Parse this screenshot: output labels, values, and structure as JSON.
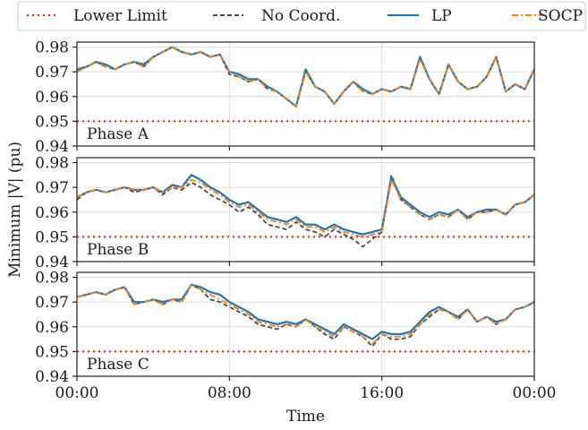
{
  "chart_data": {
    "type": "line",
    "xlabel": "Time",
    "ylabel": "Minimum |V| (pu)",
    "grid": true,
    "legend_position": "top",
    "x_ticks": [
      "00:00",
      "08:00",
      "16:00",
      "00:00"
    ],
    "x_range_hours": [
      0,
      24
    ],
    "y_range": [
      0.94,
      0.982
    ],
    "y_ticks": [
      0.94,
      0.95,
      0.96,
      0.97,
      0.98
    ],
    "legend": [
      {
        "label": "Lower Limit",
        "color": "#e0201b",
        "style": "dotted"
      },
      {
        "label": "No Coord.",
        "color": "#4a4a4a",
        "style": "dashed"
      },
      {
        "label": "LP",
        "color": "#1f77b4",
        "style": "solid"
      },
      {
        "label": "SOCP",
        "color": "#ff7f0e",
        "style": "dashdot"
      }
    ],
    "lower_limit": 0.95,
    "panels": [
      {
        "label": "Phase A",
        "hours": [
          0,
          0.5,
          1,
          1.5,
          2,
          2.5,
          3,
          3.5,
          4,
          4.5,
          5,
          5.5,
          6,
          6.5,
          7,
          7.5,
          8,
          8.5,
          9,
          9.5,
          10,
          10.5,
          11,
          11.5,
          12,
          12.5,
          13,
          13.5,
          14,
          14.5,
          15,
          15.5,
          16,
          16.5,
          17,
          17.5,
          18,
          18.5,
          19,
          19.5,
          20,
          20.5,
          21,
          21.5,
          22,
          22.5,
          23,
          23.5,
          24
        ],
        "series": [
          {
            "name": "No Coord.",
            "values": [
              0.97,
              0.972,
              0.974,
              0.972,
              0.971,
              0.973,
              0.974,
              0.972,
              0.976,
              0.978,
              0.98,
              0.978,
              0.977,
              0.978,
              0.976,
              0.977,
              0.969,
              0.968,
              0.966,
              0.967,
              0.963,
              0.962,
              0.959,
              0.956,
              0.97,
              0.964,
              0.962,
              0.957,
              0.962,
              0.966,
              0.962,
              0.961,
              0.963,
              0.962,
              0.964,
              0.963,
              0.976,
              0.967,
              0.961,
              0.973,
              0.966,
              0.963,
              0.964,
              0.968,
              0.976,
              0.962,
              0.965,
              0.963,
              0.971
            ]
          },
          {
            "name": "LP",
            "values": [
              0.971,
              0.972,
              0.974,
              0.973,
              0.971,
              0.973,
              0.974,
              0.973,
              0.976,
              0.978,
              0.98,
              0.978,
              0.977,
              0.978,
              0.976,
              0.977,
              0.97,
              0.969,
              0.967,
              0.967,
              0.964,
              0.962,
              0.959,
              0.956,
              0.971,
              0.964,
              0.962,
              0.957,
              0.962,
              0.966,
              0.963,
              0.961,
              0.963,
              0.962,
              0.964,
              0.963,
              0.976,
              0.967,
              0.961,
              0.973,
              0.966,
              0.963,
              0.964,
              0.968,
              0.976,
              0.962,
              0.965,
              0.963,
              0.971
            ]
          },
          {
            "name": "SOCP",
            "values": [
              0.97,
              0.972,
              0.974,
              0.972,
              0.971,
              0.973,
              0.974,
              0.972,
              0.976,
              0.978,
              0.98,
              0.978,
              0.977,
              0.978,
              0.976,
              0.977,
              0.97,
              0.968,
              0.966,
              0.967,
              0.963,
              0.962,
              0.959,
              0.956,
              0.97,
              0.964,
              0.962,
              0.957,
              0.962,
              0.966,
              0.962,
              0.961,
              0.963,
              0.962,
              0.964,
              0.963,
              0.975,
              0.967,
              0.961,
              0.973,
              0.966,
              0.963,
              0.964,
              0.968,
              0.976,
              0.962,
              0.965,
              0.963,
              0.971
            ]
          }
        ]
      },
      {
        "label": "Phase B",
        "hours": [
          0,
          0.5,
          1,
          1.5,
          2,
          2.5,
          3,
          3.5,
          4,
          4.5,
          5,
          5.5,
          6,
          6.5,
          7,
          7.5,
          8,
          8.5,
          9,
          9.5,
          10,
          10.5,
          11,
          11.5,
          12,
          12.5,
          13,
          13.5,
          14,
          14.5,
          15,
          15.5,
          16,
          16.5,
          17,
          17.5,
          18,
          18.5,
          19,
          19.5,
          20,
          20.5,
          21,
          21.5,
          22,
          22.5,
          23,
          23.5,
          24
        ],
        "series": [
          {
            "name": "No Coord.",
            "values": [
              0.965,
              0.968,
              0.969,
              0.968,
              0.969,
              0.97,
              0.968,
              0.969,
              0.97,
              0.967,
              0.97,
              0.969,
              0.972,
              0.97,
              0.967,
              0.965,
              0.963,
              0.96,
              0.962,
              0.959,
              0.955,
              0.954,
              0.953,
              0.956,
              0.953,
              0.952,
              0.95,
              0.953,
              0.951,
              0.949,
              0.946,
              0.949,
              0.952,
              0.975,
              0.965,
              0.962,
              0.959,
              0.957,
              0.959,
              0.958,
              0.961,
              0.957,
              0.96,
              0.96,
              0.961,
              0.959,
              0.963,
              0.964,
              0.967
            ]
          },
          {
            "name": "LP",
            "values": [
              0.966,
              0.968,
              0.969,
              0.968,
              0.969,
              0.97,
              0.969,
              0.969,
              0.97,
              0.968,
              0.971,
              0.97,
              0.975,
              0.973,
              0.97,
              0.968,
              0.965,
              0.963,
              0.964,
              0.961,
              0.958,
              0.957,
              0.956,
              0.958,
              0.955,
              0.955,
              0.953,
              0.955,
              0.953,
              0.952,
              0.951,
              0.952,
              0.953,
              0.974,
              0.966,
              0.963,
              0.96,
              0.958,
              0.96,
              0.959,
              0.961,
              0.958,
              0.96,
              0.961,
              0.961,
              0.959,
              0.963,
              0.964,
              0.967
            ]
          },
          {
            "name": "SOCP",
            "values": [
              0.966,
              0.968,
              0.969,
              0.968,
              0.969,
              0.97,
              0.969,
              0.969,
              0.97,
              0.968,
              0.97,
              0.97,
              0.973,
              0.972,
              0.969,
              0.967,
              0.964,
              0.962,
              0.963,
              0.96,
              0.957,
              0.956,
              0.955,
              0.957,
              0.954,
              0.954,
              0.952,
              0.954,
              0.952,
              0.951,
              0.95,
              0.951,
              0.952,
              0.973,
              0.965,
              0.962,
              0.959,
              0.957,
              0.959,
              0.958,
              0.961,
              0.957,
              0.96,
              0.96,
              0.961,
              0.959,
              0.963,
              0.964,
              0.967
            ]
          }
        ]
      },
      {
        "label": "Phase C",
        "hours": [
          0,
          0.5,
          1,
          1.5,
          2,
          2.5,
          3,
          3.5,
          4,
          4.5,
          5,
          5.5,
          6,
          6.5,
          7,
          7.5,
          8,
          8.5,
          9,
          9.5,
          10,
          10.5,
          11,
          11.5,
          12,
          12.5,
          13,
          13.5,
          14,
          14.5,
          15,
          15.5,
          16,
          16.5,
          17,
          17.5,
          18,
          18.5,
          19,
          19.5,
          20,
          20.5,
          21,
          21.5,
          22,
          22.5,
          23,
          23.5,
          24
        ],
        "series": [
          {
            "name": "No Coord.",
            "values": [
              0.972,
              0.973,
              0.974,
              0.973,
              0.975,
              0.976,
              0.969,
              0.97,
              0.971,
              0.969,
              0.971,
              0.97,
              0.977,
              0.975,
              0.971,
              0.97,
              0.968,
              0.966,
              0.964,
              0.961,
              0.96,
              0.959,
              0.961,
              0.96,
              0.963,
              0.96,
              0.957,
              0.955,
              0.96,
              0.958,
              0.956,
              0.952,
              0.957,
              0.955,
              0.955,
              0.956,
              0.961,
              0.964,
              0.967,
              0.966,
              0.963,
              0.967,
              0.962,
              0.964,
              0.961,
              0.963,
              0.967,
              0.968,
              0.97
            ]
          },
          {
            "name": "LP",
            "values": [
              0.972,
              0.973,
              0.974,
              0.973,
              0.975,
              0.976,
              0.97,
              0.97,
              0.971,
              0.97,
              0.971,
              0.971,
              0.977,
              0.976,
              0.974,
              0.973,
              0.97,
              0.968,
              0.966,
              0.963,
              0.962,
              0.961,
              0.962,
              0.961,
              0.963,
              0.961,
              0.959,
              0.957,
              0.961,
              0.959,
              0.957,
              0.955,
              0.958,
              0.957,
              0.957,
              0.958,
              0.962,
              0.966,
              0.968,
              0.966,
              0.964,
              0.967,
              0.962,
              0.964,
              0.962,
              0.963,
              0.967,
              0.968,
              0.97
            ]
          },
          {
            "name": "SOCP",
            "values": [
              0.972,
              0.973,
              0.974,
              0.973,
              0.975,
              0.976,
              0.969,
              0.97,
              0.971,
              0.969,
              0.971,
              0.97,
              0.977,
              0.975,
              0.973,
              0.971,
              0.969,
              0.967,
              0.965,
              0.962,
              0.961,
              0.96,
              0.961,
              0.96,
              0.963,
              0.96,
              0.958,
              0.956,
              0.96,
              0.958,
              0.956,
              0.953,
              0.957,
              0.956,
              0.956,
              0.957,
              0.961,
              0.965,
              0.967,
              0.966,
              0.963,
              0.967,
              0.962,
              0.964,
              0.961,
              0.963,
              0.967,
              0.968,
              0.97
            ]
          }
        ]
      }
    ]
  }
}
